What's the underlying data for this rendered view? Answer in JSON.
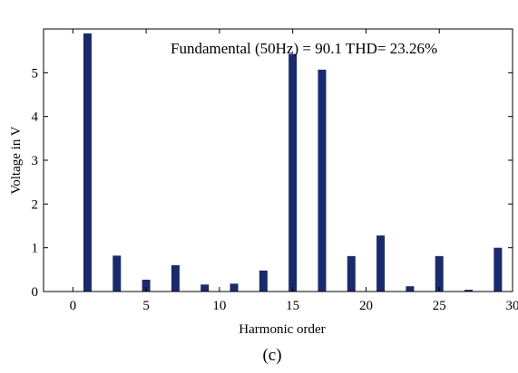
{
  "chart_data": {
    "type": "bar",
    "x": [
      1,
      3,
      5,
      7,
      9,
      11,
      13,
      15,
      17,
      19,
      21,
      23,
      25,
      27,
      29
    ],
    "values": [
      5.9,
      0.82,
      0.27,
      0.6,
      0.16,
      0.18,
      0.48,
      5.43,
      5.07,
      0.81,
      1.28,
      0.12,
      0.81,
      0.04,
      1.0
    ],
    "xlabel": "Harmonic order",
    "ylabel": "Voltage in V",
    "xlim": [
      -2,
      30
    ],
    "ylim": [
      0,
      6
    ],
    "xticks": [
      "0",
      "5",
      "10",
      "15",
      "20",
      "25",
      "30"
    ],
    "yticks": [
      "0",
      "1",
      "2",
      "3",
      "4",
      "5"
    ],
    "annotation": "Fundamental (50Hz) = 90.1  THD= 23.26%",
    "caption": "(c)",
    "bar_color": "#1b2a6b",
    "grid": false
  }
}
